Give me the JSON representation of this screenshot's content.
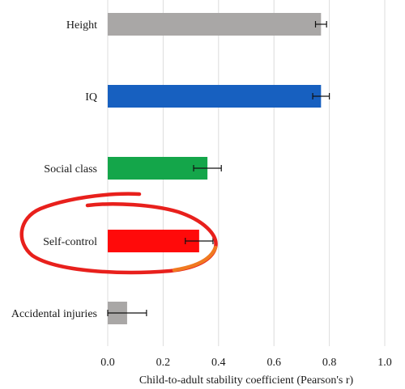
{
  "chart_data": {
    "type": "bar",
    "orientation": "horizontal",
    "categories": [
      "Height",
      "IQ",
      "Social class",
      "Self-control",
      "Accidental injuries"
    ],
    "values": [
      0.77,
      0.77,
      0.36,
      0.33,
      0.07
    ],
    "error": [
      0.02,
      0.03,
      0.05,
      0.05,
      0.07
    ],
    "bar_colors": [
      "#a9a7a6",
      "#1760c0",
      "#14a64a",
      "#ff0a0a",
      "#a9a7a6"
    ],
    "xlabel": "Child-to-adult stability coefficient (Pearson's r)",
    "xlim": [
      0,
      1.0
    ],
    "xticks": [
      "0.0",
      "0.2",
      "0.4",
      "0.6",
      "0.8",
      "1.0"
    ],
    "grid": true,
    "annotations": [
      {
        "type": "hand-drawn-circle",
        "target": "Self-control",
        "color": "#e8201c"
      }
    ]
  }
}
